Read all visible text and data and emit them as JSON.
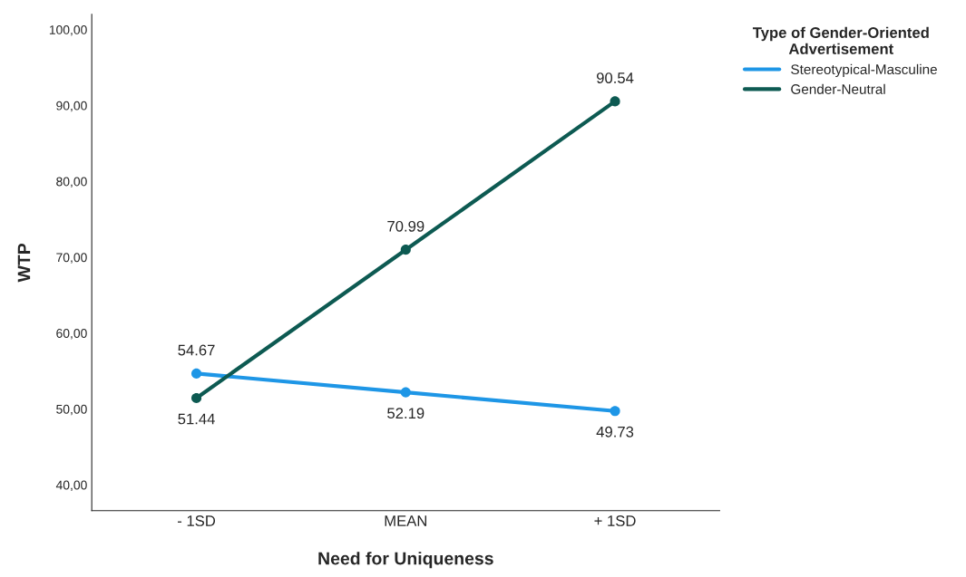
{
  "chart_data": {
    "type": "line",
    "xlabel": "Need for Uniqueness",
    "ylabel": "WTP",
    "legend_title": "Type of Gender-Oriented\nAdvertisement",
    "categories": [
      "- 1SD",
      "MEAN",
      "+ 1SD"
    ],
    "series": [
      {
        "name": "Stereotypical-Masculine",
        "color": "#1e96e6",
        "values": [
          54.67,
          52.19,
          49.73
        ]
      },
      {
        "name": "Gender-Neutral",
        "color": "#0d5a52",
        "values": [
          51.44,
          70.99,
          90.54
        ]
      }
    ],
    "ylim": [
      36.6,
      102
    ],
    "yticks": [
      {
        "value": 40,
        "label": "40,00"
      },
      {
        "value": 50,
        "label": "50,00"
      },
      {
        "value": 60,
        "label": "60,00"
      },
      {
        "value": 70,
        "label": "70,00"
      },
      {
        "value": 80,
        "label": "80,00"
      },
      {
        "value": 90,
        "label": "90,00"
      },
      {
        "value": 100,
        "label": "100,00"
      }
    ],
    "data_labels": true,
    "legend": "top right",
    "grid": false,
    "marker": "circle",
    "line_style": "solid"
  }
}
